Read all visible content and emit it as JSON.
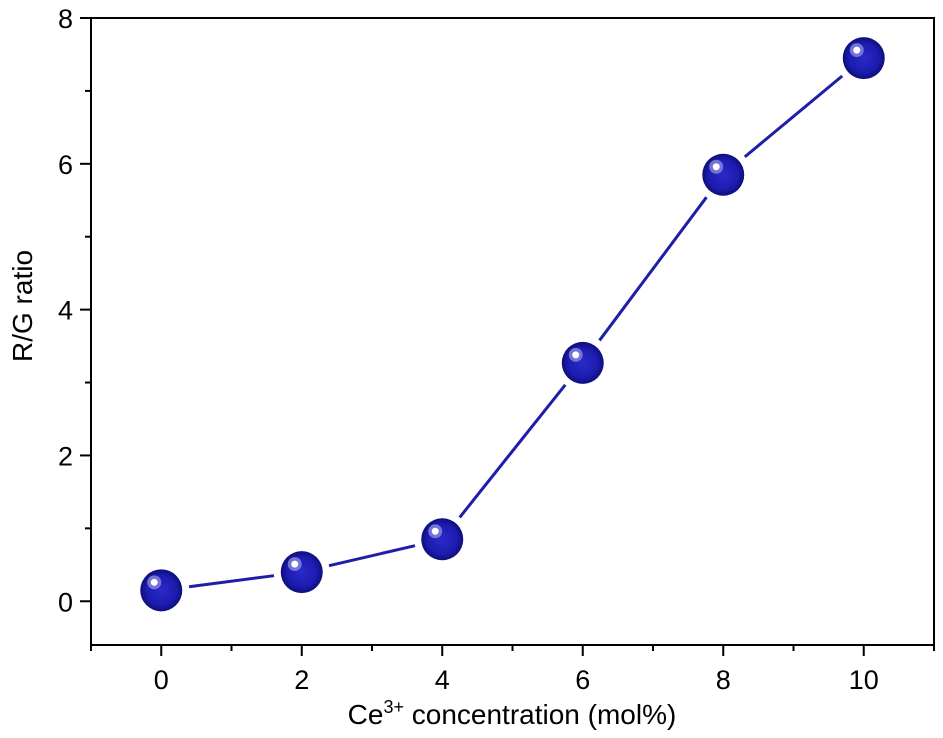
{
  "chart_data": {
    "type": "line",
    "xlabel": "Ce",
    "xlabel_superscript": "3+",
    "xlabel_suffix": " concentration (mol%)",
    "ylabel": "R/G ratio",
    "xlim": [
      -1,
      11
    ],
    "ylim": [
      -0.6,
      8
    ],
    "xticks": [
      0,
      2,
      4,
      6,
      8,
      10
    ],
    "yticks": [
      0,
      2,
      4,
      6,
      8
    ],
    "xtick_labels": [
      "0",
      "2",
      "4",
      "6",
      "8",
      "10"
    ],
    "ytick_labels": [
      "0",
      "2",
      "4",
      "6",
      "8"
    ],
    "grid": false,
    "series": [
      {
        "x": [
          0,
          2,
          4,
          6,
          8,
          10
        ],
        "values": [
          0.15,
          0.4,
          0.85,
          3.27,
          5.85,
          7.45
        ],
        "color": "#1e1ea8",
        "marker": "sphere"
      }
    ]
  }
}
